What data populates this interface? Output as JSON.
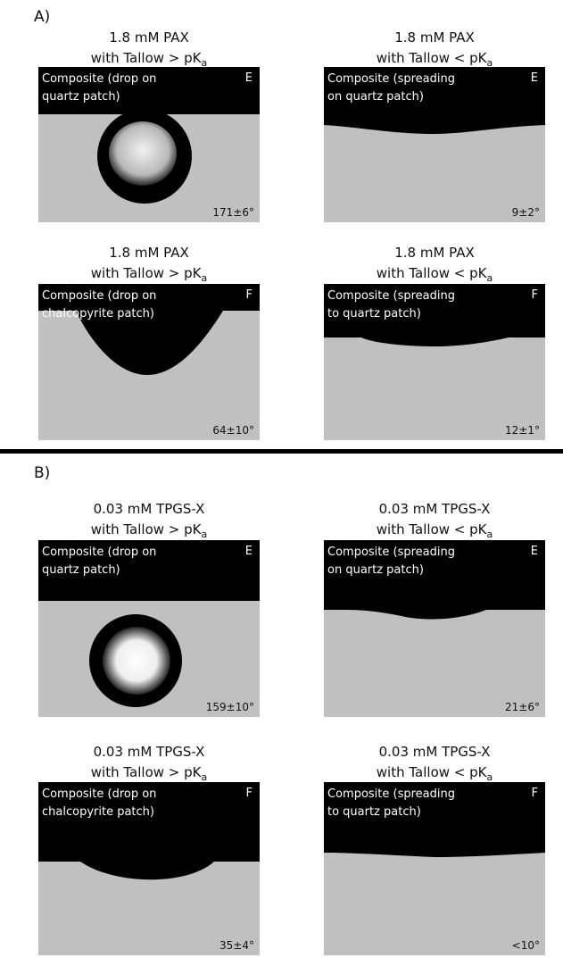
{
  "sections": [
    {
      "label": "A)",
      "panels": [
        {
          "title": "1.8 mM PAX",
          "subtitle": "with Tallow > pK",
          "subscript": "a",
          "caption": [
            "Composite (drop on",
            "quartz patch)"
          ],
          "corner": "E",
          "angle": "171±6°"
        },
        {
          "title": "1.8 mM PAX",
          "subtitle": "with Tallow < pK",
          "subscript": "a",
          "caption": [
            "Composite (spreading",
            "on quartz patch)"
          ],
          "corner": "E",
          "angle": "9±2°"
        },
        {
          "title": "1.8 mM PAX",
          "subtitle": "with Tallow > pK",
          "subscript": "a",
          "caption": [
            "Composite (drop on",
            "chalcopyrite patch)"
          ],
          "corner": "F",
          "angle": "64±10°"
        },
        {
          "title": "1.8 mM PAX",
          "subtitle": "with Tallow < pK",
          "subscript": "a",
          "caption": [
            "Composite (spreading",
            "to quartz patch)"
          ],
          "corner": "F",
          "angle": "12±1°"
        }
      ]
    },
    {
      "label": "B)",
      "panels": [
        {
          "title": "0.03 mM TPGS-X",
          "subtitle": "with Tallow > pK",
          "subscript": "a",
          "caption": [
            "Composite (drop on",
            "quartz patch)"
          ],
          "corner": "E",
          "angle": "159±10°"
        },
        {
          "title": "0.03 mM TPGS-X",
          "subtitle": "with Tallow < pK",
          "subscript": "a",
          "caption": [
            "Composite (spreading",
            "on quartz patch)"
          ],
          "corner": "E",
          "angle": "21±6°"
        },
        {
          "title": "0.03 mM TPGS-X",
          "subtitle": "with Tallow > pK",
          "subscript": "a",
          "caption": [
            "Composite (drop on",
            "chalcopyrite patch)"
          ],
          "corner": "F",
          "angle": "35±4°"
        },
        {
          "title": "0.03 mM TPGS-X",
          "subtitle": "with Tallow < pK",
          "subscript": "a",
          "caption": [
            "Composite (spreading",
            "to quartz patch)"
          ],
          "corner": "F",
          "angle": "<10°"
        }
      ]
    }
  ]
}
